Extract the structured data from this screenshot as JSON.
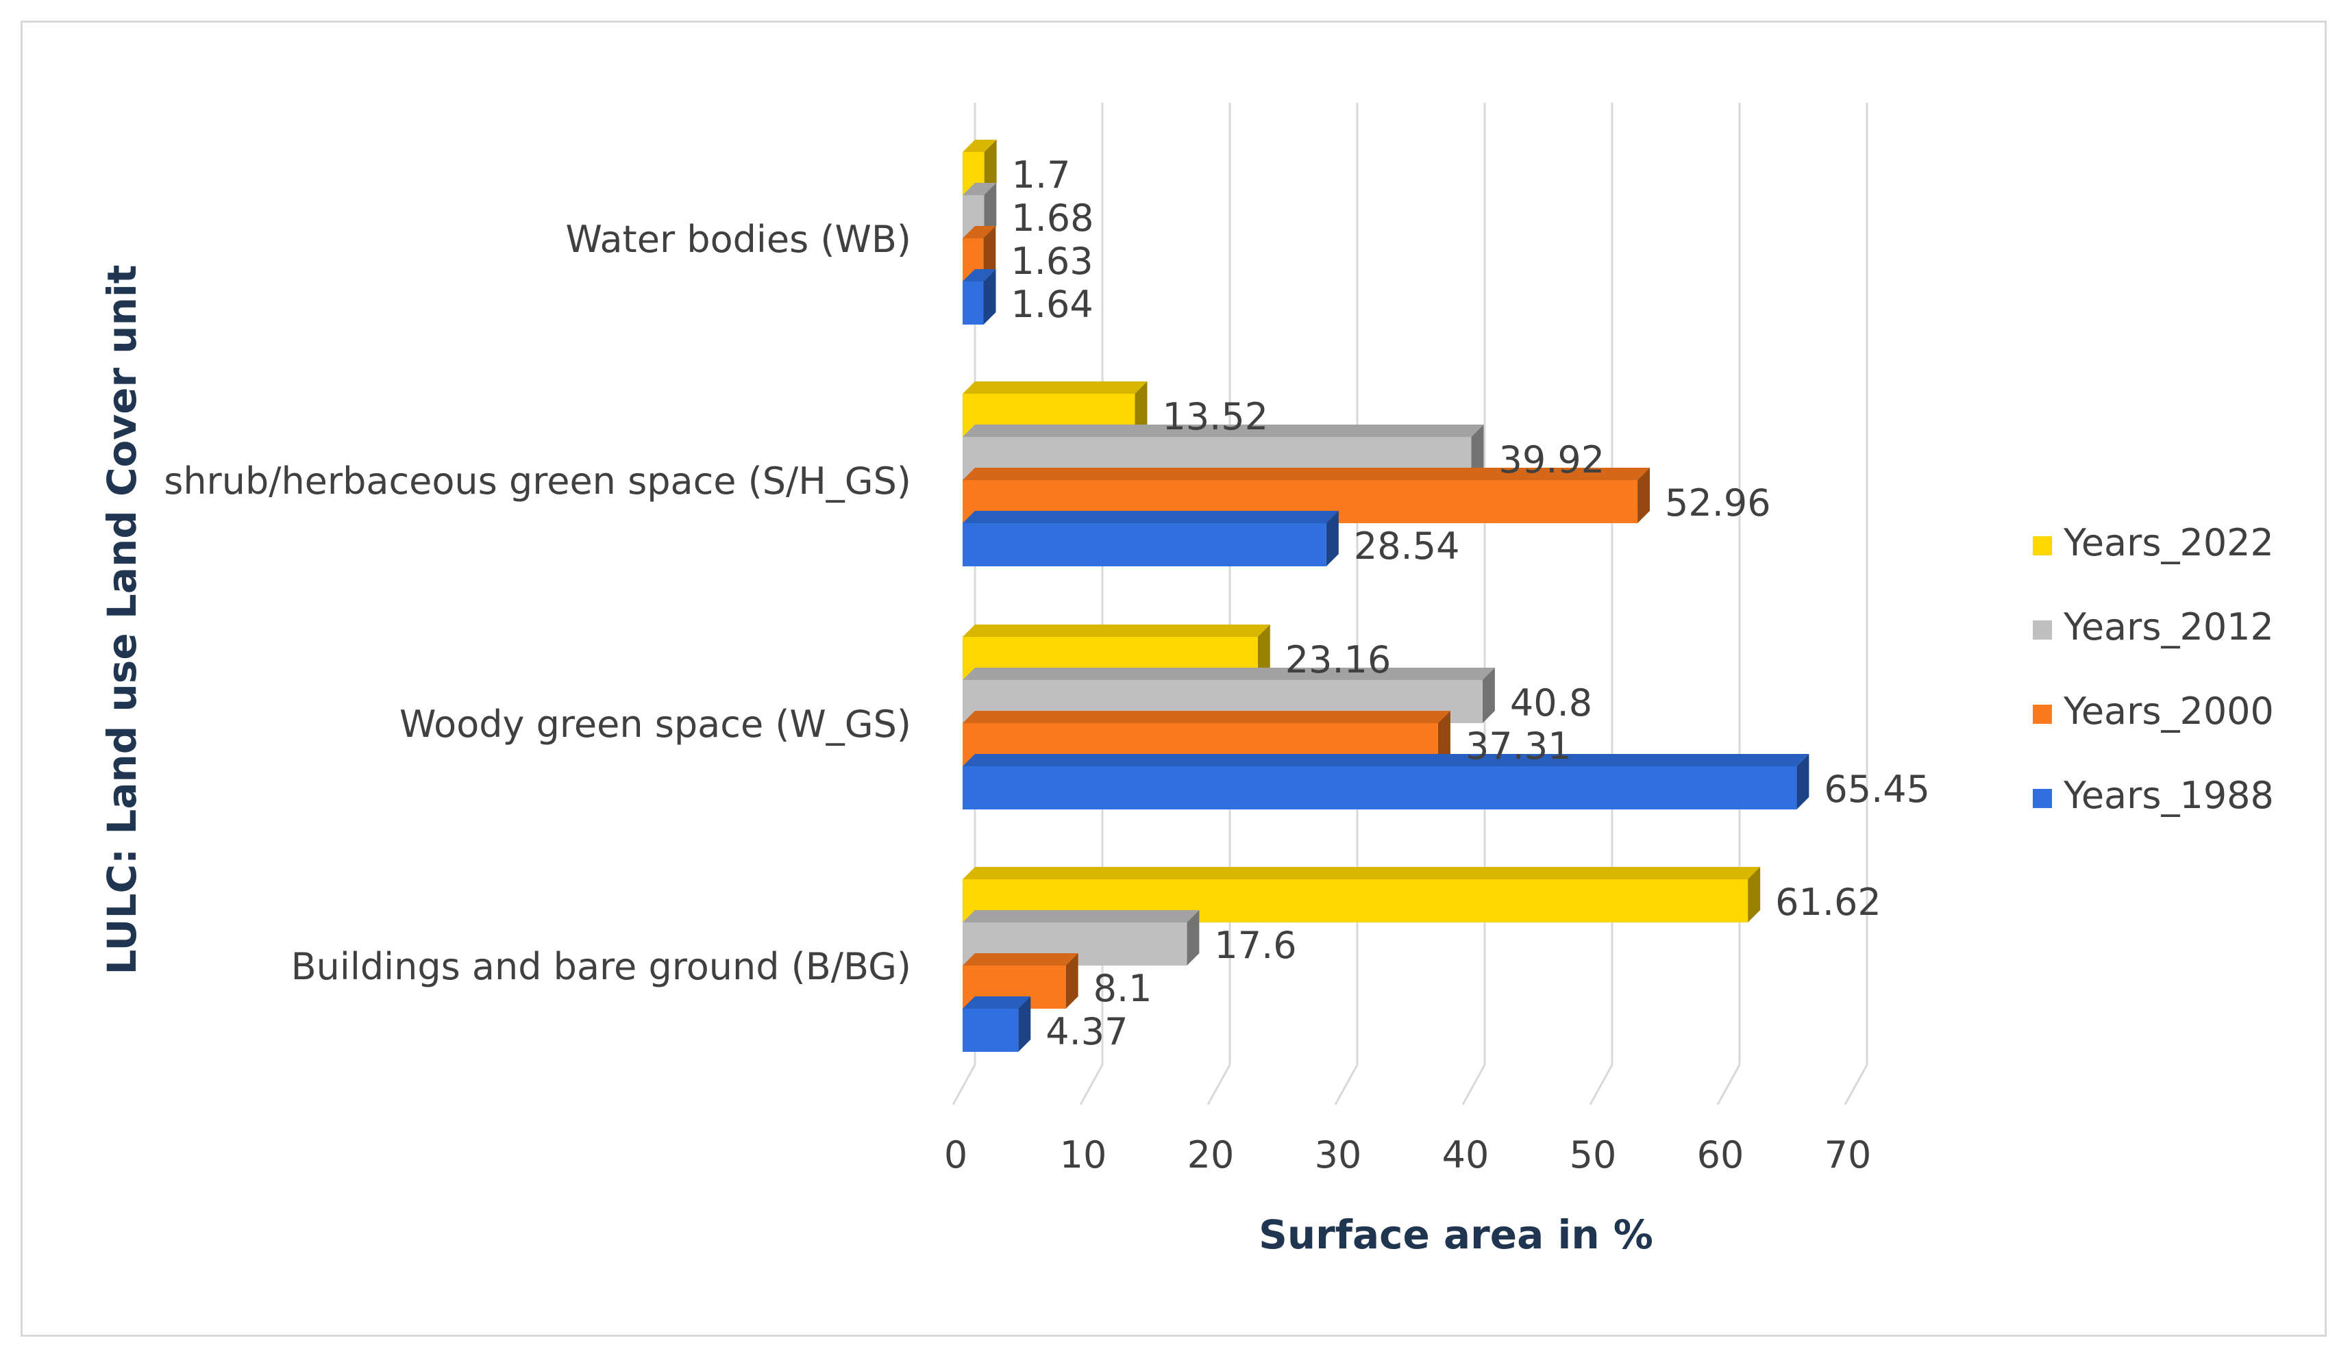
{
  "chart_data": {
    "type": "bar",
    "orientation": "horizontal",
    "style": "3d-clustered",
    "xlabel": "Surface area in %",
    "ylabel": "LULC: Land use Land Cover unit",
    "xlim": [
      0,
      70
    ],
    "xticks": [
      0,
      10,
      20,
      30,
      40,
      50,
      60,
      70
    ],
    "grid": "vertical",
    "legend_position": "right",
    "categories": [
      "Water bodies (WB)",
      "shrub/herbaceous green space (S/H_GS)",
      "Woody green space (W_GS)",
      "Buildings and bare ground (B/BG)"
    ],
    "series": [
      {
        "name": "Years_2022",
        "color": "#FFD700",
        "values": [
          1.7,
          13.52,
          23.16,
          61.62
        ],
        "labels": [
          "1.7",
          "13.52",
          "23.16",
          "61.62"
        ]
      },
      {
        "name": "Years_2012",
        "color": "#BFBFBF",
        "values": [
          1.68,
          39.92,
          40.8,
          17.6
        ],
        "labels": [
          "1.68",
          "39.92",
          "40.8",
          "17.6"
        ]
      },
      {
        "name": "Years_2000",
        "color": "#F97A1C",
        "values": [
          1.63,
          52.96,
          37.31,
          8.1
        ],
        "labels": [
          "1.63",
          "52.96",
          "37.31",
          "8.1"
        ]
      },
      {
        "name": "Years_1988",
        "color": "#2F6FE0",
        "values": [
          1.64,
          28.54,
          65.45,
          4.37
        ],
        "labels": [
          "1.64",
          "28.54",
          "65.45",
          "4.37"
        ]
      }
    ]
  }
}
